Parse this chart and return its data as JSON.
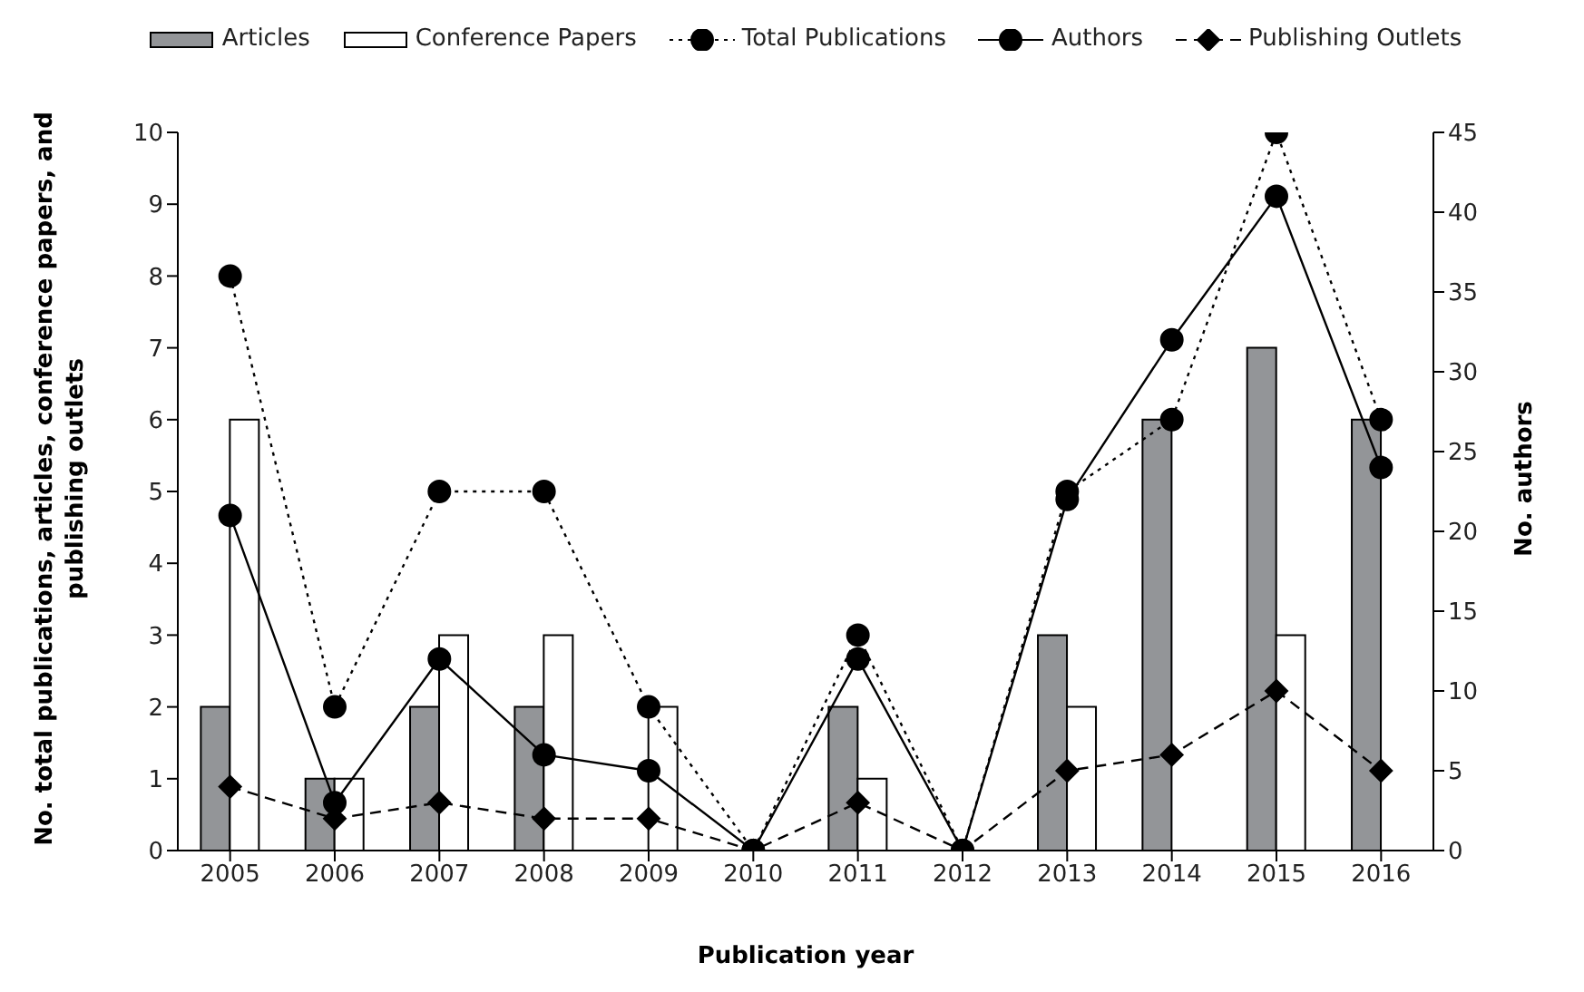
{
  "chart_data": {
    "type": "bar",
    "xlabel": "Publication year",
    "ylabel": "No. total publications, articles, conference papers, and publishing outlets",
    "y2label": "No. authors",
    "categories": [
      "2005",
      "2006",
      "2007",
      "2008",
      "2009",
      "2010",
      "2011",
      "2012",
      "2013",
      "2014",
      "2015",
      "2016"
    ],
    "series": [
      {
        "name": "Articles",
        "color": "#939598",
        "values": [
          2,
          1,
          2,
          2,
          0,
          0,
          2,
          0,
          3,
          6,
          7,
          6
        ]
      },
      {
        "name": "Conference Papers",
        "color": "#ffffff",
        "values": [
          6,
          1,
          3,
          3,
          2,
          0,
          1,
          0,
          2,
          0,
          3,
          0
        ]
      },
      {
        "name": "Total Publications",
        "type": "line",
        "color": "#000000",
        "marker": "circle",
        "line_style": "dotted",
        "values": [
          8,
          2,
          5,
          5,
          2,
          0,
          3,
          0,
          5,
          6,
          10,
          6
        ]
      },
      {
        "name": "Authors",
        "type": "line",
        "color": "#000000",
        "marker": "circle",
        "line_style": "solid",
        "axis": "y2",
        "values": [
          21,
          3,
          12,
          6,
          5,
          0,
          12,
          0,
          22,
          32,
          41,
          24
        ]
      },
      {
        "name": "Publishing Outlets",
        "type": "line",
        "color": "#000000",
        "marker": "diamond",
        "line_style": "dashed",
        "axis": "y2",
        "values": [
          4,
          2,
          3,
          2,
          2,
          0,
          3,
          0,
          5,
          6,
          10,
          5
        ]
      }
    ],
    "ylim": [
      0,
      10
    ],
    "yticks": [
      0,
      1,
      2,
      3,
      4,
      5,
      6,
      7,
      8,
      9,
      10
    ],
    "y2lim": [
      0,
      45
    ],
    "y2ticks": [
      0,
      5,
      10,
      15,
      20,
      25,
      30,
      35,
      40,
      45
    ],
    "legend": "top",
    "grid": false
  }
}
